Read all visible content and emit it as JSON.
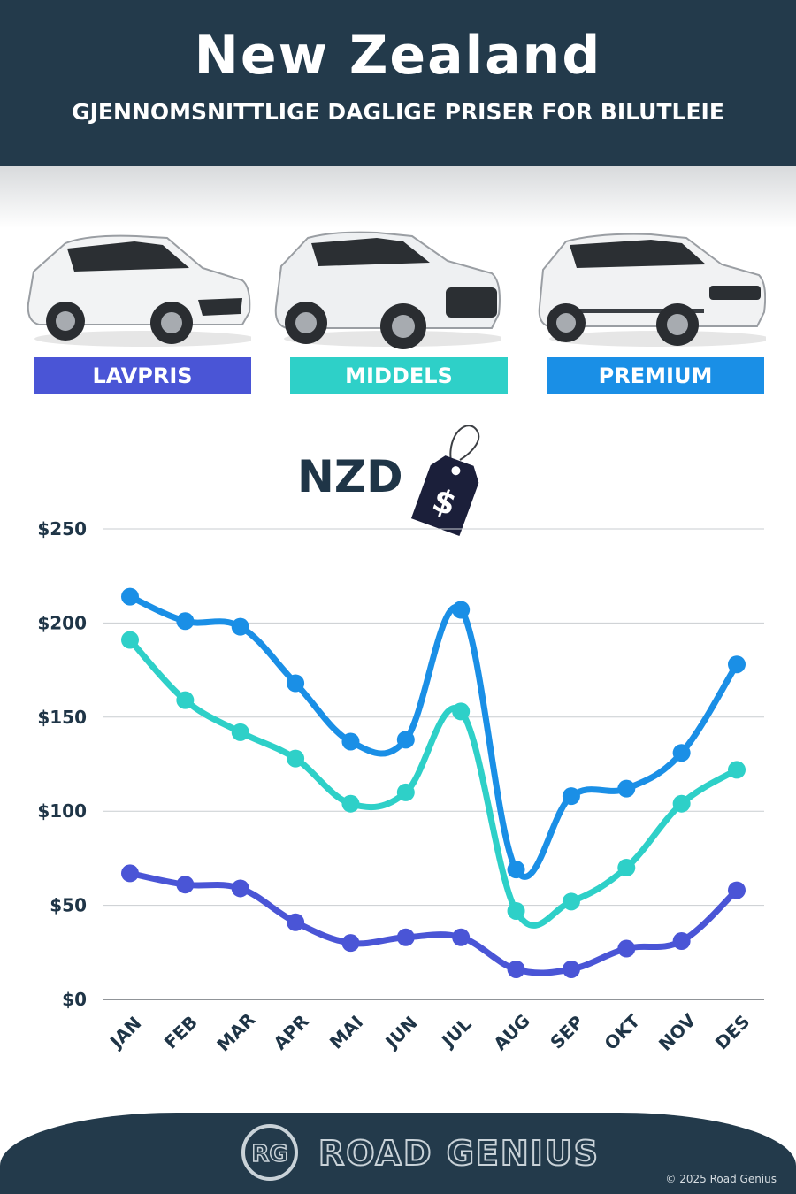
{
  "header": {
    "title": "New Zealand",
    "subtitle": "GJENNOMSNITTLIGE DAGLIGE PRISER FOR BILUTLEIE"
  },
  "categories": [
    {
      "label": "LAVPRIS",
      "color": "#4a55d6",
      "icon": "hatchback-car-icon"
    },
    {
      "label": "MIDDELS",
      "color": "#2ed0c8",
      "icon": "suv-car-icon"
    },
    {
      "label": "PREMIUM",
      "color": "#1a8fe6",
      "icon": "luxury-suv-car-icon"
    }
  ],
  "currency": "NZD",
  "price_tag_symbol": "$",
  "chart_data": {
    "type": "line",
    "categories": [
      "JAN",
      "FEB",
      "MAR",
      "APR",
      "MAI",
      "JUN",
      "JUL",
      "AUG",
      "SEP",
      "OKT",
      "NOV",
      "DES"
    ],
    "series": [
      {
        "name": "PREMIUM",
        "color": "#1a8fe6",
        "values": [
          214,
          201,
          198,
          168,
          137,
          138,
          207,
          69,
          108,
          112,
          131,
          178
        ]
      },
      {
        "name": "MIDDELS",
        "color": "#2ed0c8",
        "values": [
          191,
          159,
          142,
          128,
          104,
          110,
          153,
          47,
          52,
          70,
          104,
          122
        ]
      },
      {
        "name": "LAVPRIS",
        "color": "#4a55d6",
        "values": [
          67,
          61,
          59,
          41,
          30,
          33,
          33,
          16,
          16,
          27,
          31,
          58
        ]
      }
    ],
    "yticks": [
      "$0",
      "$50",
      "$100",
      "$150",
      "$200",
      "$250"
    ],
    "ytick_values": [
      0,
      50,
      100,
      150,
      200,
      250
    ],
    "ylim": [
      0,
      250
    ],
    "grid": true
  },
  "footer": {
    "logo_text": "RG",
    "brand": "ROAD GENIUS",
    "copyright": "© 2025 Road Genius"
  }
}
